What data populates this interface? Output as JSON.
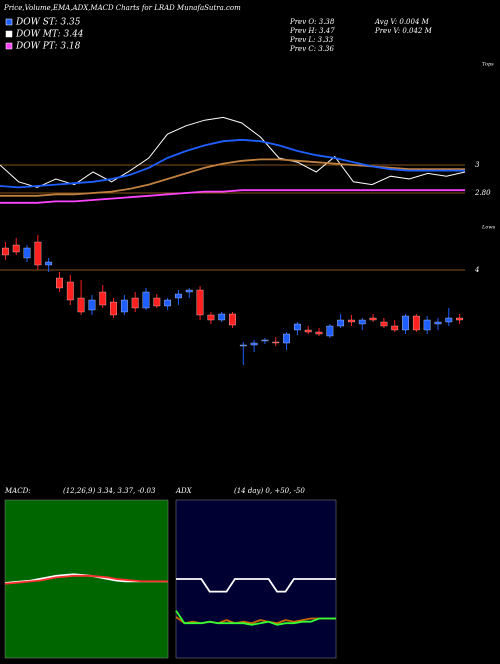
{
  "header": "Price,Volume,EMA,ADX,MACD Charts for LRAD MunafaSutra.com",
  "legend": [
    {
      "name": "DOW ST: 3.35",
      "color": "#1f5fff"
    },
    {
      "name": "DOW MT: 3.44",
      "color": "#ffffff"
    },
    {
      "name": "DOW PT: 3.18",
      "color": "#ff44ff"
    }
  ],
  "prev": [
    "Prev  O: 3.38",
    "Prev  H: 3.47",
    "Prev  L: 3.33",
    "Prev  C: 3.36"
  ],
  "volume": [
    "Avg  V: 0.004  M",
    "Prev  V: 0.042  M"
  ],
  "tops_label": "Tops",
  "lows_label": "Lows",
  "chart_data": [
    {
      "type": "line",
      "ylim": [
        2.55,
        3.75
      ],
      "yticks": [
        3,
        {
          "value": 2.8,
          "label": "2.80"
        }
      ],
      "series": [
        {
          "name": null,
          "color": "#ffffff",
          "values": [
            3.0,
            2.88,
            2.84,
            2.9,
            2.86,
            2.95,
            2.88,
            2.96,
            3.05,
            3.22,
            3.28,
            3.32,
            3.34,
            3.3,
            3.2,
            3.05,
            3.02,
            2.95,
            3.06,
            2.88,
            2.86,
            2.92,
            2.9,
            2.94,
            2.92,
            2.95
          ]
        },
        {
          "name": null,
          "color": "#c08040",
          "values": [
            2.78,
            2.78,
            2.78,
            2.79,
            2.79,
            2.8,
            2.81,
            2.83,
            2.86,
            2.9,
            2.94,
            2.98,
            3.01,
            3.03,
            3.04,
            3.04,
            3.03,
            3.02,
            3.01,
            3.0,
            2.99,
            2.98,
            2.97,
            2.97,
            2.97,
            2.97
          ]
        },
        {
          "name": null,
          "color": "#1f5fff",
          "values": [
            2.85,
            2.84,
            2.85,
            2.86,
            2.87,
            2.88,
            2.9,
            2.93,
            2.98,
            3.05,
            3.1,
            3.14,
            3.17,
            3.18,
            3.17,
            3.14,
            3.1,
            3.07,
            3.05,
            3.02,
            2.99,
            2.97,
            2.96,
            2.96,
            2.96,
            2.96
          ]
        },
        {
          "name": null,
          "color": "#ff44ff",
          "values": [
            2.73,
            2.73,
            2.73,
            2.74,
            2.74,
            2.75,
            2.76,
            2.77,
            2.78,
            2.79,
            2.8,
            2.81,
            2.81,
            2.82,
            2.82,
            2.82,
            2.82,
            2.82,
            2.82,
            2.82,
            2.82,
            2.82,
            2.82,
            2.82,
            2.82,
            2.82
          ]
        }
      ]
    },
    {
      "type": "candlestick",
      "ylim": [
        2.9,
        4.4
      ],
      "yticks": [
        4
      ],
      "ohlc": [
        [
          4.22,
          4.28,
          4.1,
          4.15
        ],
        [
          4.25,
          4.32,
          4.15,
          4.18
        ],
        [
          4.12,
          4.25,
          4.08,
          4.22
        ],
        [
          4.28,
          4.35,
          4.0,
          4.05
        ],
        [
          4.05,
          4.12,
          3.98,
          4.08
        ],
        [
          3.92,
          3.98,
          3.78,
          3.82
        ],
        [
          3.88,
          3.95,
          3.65,
          3.7
        ],
        [
          3.72,
          3.9,
          3.55,
          3.58
        ],
        [
          3.6,
          3.75,
          3.55,
          3.7
        ],
        [
          3.78,
          3.85,
          3.62,
          3.65
        ],
        [
          3.68,
          3.72,
          3.52,
          3.55
        ],
        [
          3.58,
          3.75,
          3.55,
          3.7
        ],
        [
          3.72,
          3.78,
          3.58,
          3.62
        ],
        [
          3.62,
          3.82,
          3.6,
          3.78
        ],
        [
          3.72,
          3.76,
          3.62,
          3.64
        ],
        [
          3.64,
          3.72,
          3.6,
          3.7
        ],
        [
          3.72,
          3.8,
          3.65,
          3.76
        ],
        [
          3.78,
          3.82,
          3.72,
          3.8
        ],
        [
          3.8,
          3.84,
          3.5,
          3.55
        ],
        [
          3.55,
          3.58,
          3.46,
          3.5
        ],
        [
          3.5,
          3.58,
          3.48,
          3.56
        ],
        [
          3.56,
          3.58,
          3.42,
          3.45
        ],
        [
          3.24,
          3.28,
          3.05,
          3.25
        ],
        [
          3.25,
          3.3,
          3.18,
          3.27
        ],
        [
          3.29,
          3.32,
          3.26,
          3.3
        ],
        [
          3.28,
          3.33,
          3.24,
          3.27
        ],
        [
          3.27,
          3.38,
          3.2,
          3.36
        ],
        [
          3.4,
          3.48,
          3.35,
          3.46
        ],
        [
          3.4,
          3.44,
          3.36,
          3.38
        ],
        [
          3.38,
          3.42,
          3.34,
          3.36
        ],
        [
          3.34,
          3.46,
          3.32,
          3.44
        ],
        [
          3.44,
          3.56,
          3.42,
          3.5
        ],
        [
          3.5,
          3.55,
          3.44,
          3.48
        ],
        [
          3.46,
          3.52,
          3.4,
          3.5
        ],
        [
          3.52,
          3.56,
          3.48,
          3.5
        ],
        [
          3.48,
          3.52,
          3.42,
          3.44
        ],
        [
          3.44,
          3.5,
          3.38,
          3.4
        ],
        [
          3.4,
          3.56,
          3.36,
          3.54
        ],
        [
          3.54,
          3.56,
          3.38,
          3.4
        ],
        [
          3.4,
          3.54,
          3.36,
          3.5
        ],
        [
          3.46,
          3.52,
          3.4,
          3.48
        ],
        [
          3.48,
          3.62,
          3.44,
          3.52
        ],
        [
          3.52,
          3.56,
          3.46,
          3.5
        ]
      ],
      "up_color": "#1f5fff",
      "down_color": "#ff2020"
    },
    {
      "type": "line",
      "title": "MACD:",
      "subtitle": "(12,26,9) 3.34, 3.37, -0.03",
      "background": "#006600",
      "ylim": [
        -1,
        1
      ],
      "series": [
        {
          "name": null,
          "color": "#ffffff",
          "values": [
            -0.05,
            -0.04,
            -0.03,
            -0.02,
            0.0,
            0.02,
            0.04,
            0.05,
            0.06,
            0.05,
            0.04,
            0.02,
            0.0,
            -0.02,
            -0.03,
            -0.03,
            -0.03,
            -0.03,
            -0.03,
            -0.03
          ]
        },
        {
          "name": null,
          "color": "#ff3030",
          "values": [
            -0.06,
            -0.05,
            -0.04,
            -0.03,
            -0.02,
            0.0,
            0.02,
            0.03,
            0.04,
            0.04,
            0.04,
            0.03,
            0.02,
            0.0,
            -0.01,
            -0.02,
            -0.03,
            -0.03,
            -0.03,
            -0.03
          ]
        }
      ]
    },
    {
      "type": "line",
      "title": "ADX",
      "subtitle": "(14  day) 0, +50, -50",
      "background": "#000033",
      "ylim": [
        0,
        100
      ],
      "series": [
        {
          "name": null,
          "color": "#ffffff",
          "values": [
            50,
            50,
            50,
            50,
            42,
            42,
            42,
            50,
            50,
            50,
            50,
            50,
            42,
            42,
            50,
            50,
            50,
            50,
            50,
            50
          ]
        },
        {
          "name": null,
          "color": "#cc6600",
          "values": [
            26,
            22,
            23,
            22,
            23,
            22,
            24,
            22,
            23,
            22,
            24,
            23,
            22,
            24,
            23,
            24,
            25,
            25,
            25,
            25
          ]
        },
        {
          "name": null,
          "color": "#33ff33",
          "values": [
            30,
            22,
            22,
            22,
            23,
            22,
            22,
            22,
            22,
            21,
            22,
            23,
            21,
            22,
            22,
            23,
            23,
            25,
            25,
            25
          ]
        }
      ]
    }
  ]
}
